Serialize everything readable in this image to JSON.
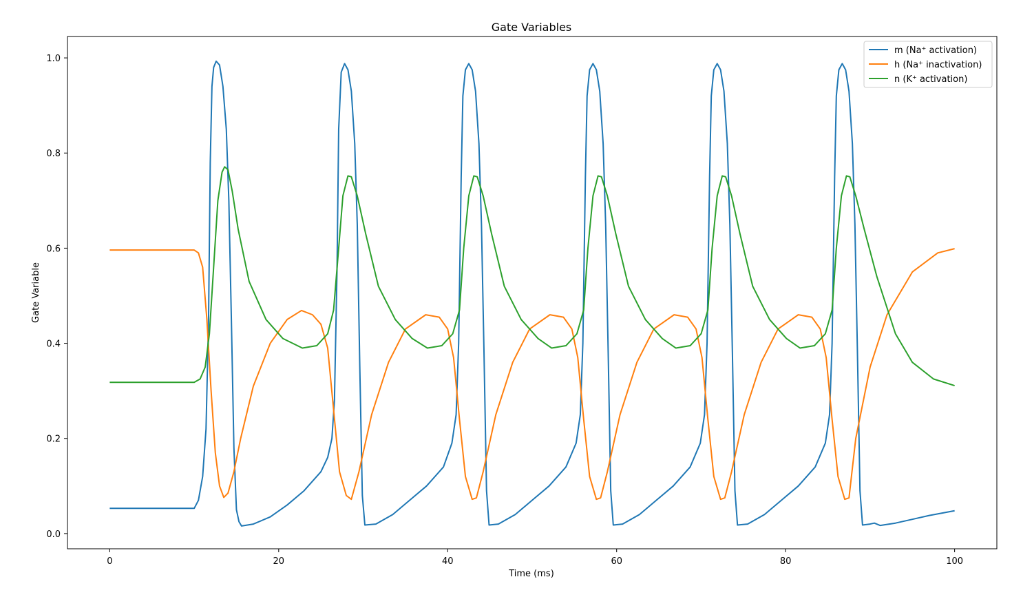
{
  "chart_data": {
    "type": "line",
    "title": "Gate Variables",
    "xlabel": "Time (ms)",
    "ylabel": "Gate Variable",
    "xlim": [
      -5,
      105
    ],
    "ylim": [
      -0.032,
      1.045
    ],
    "xticks": [
      0,
      20,
      40,
      60,
      80,
      100
    ],
    "xtick_labels": [
      "0",
      "20",
      "40",
      "60",
      "80",
      "100"
    ],
    "yticks": [
      0.0,
      0.2,
      0.4,
      0.6,
      0.8,
      1.0
    ],
    "ytick_labels": [
      "0.0",
      "0.2",
      "0.4",
      "0.6",
      "0.8",
      "1.0"
    ],
    "grid": false,
    "legend_position": "top-right",
    "series": [
      {
        "name": "m (Na⁺ activation)",
        "color": "#1f77b4",
        "x": [
          0,
          10,
          10.5,
          11,
          11.4,
          11.7,
          11.9,
          12.1,
          12.3,
          12.6,
          13,
          13.4,
          13.8,
          14.1,
          14.4,
          14.7,
          15,
          15.3,
          15.6,
          17,
          19,
          21,
          23,
          25,
          25.8,
          26.3,
          26.6,
          26.9,
          27.1,
          27.4,
          27.8,
          28.2,
          28.6,
          29,
          29.3,
          29.6,
          29.9,
          30.2,
          31.5,
          33.5,
          35.5,
          37.5,
          39.5,
          40.5,
          41,
          41.3,
          41.6,
          41.8,
          42.1,
          42.5,
          42.9,
          43.3,
          43.7,
          44,
          44.3,
          44.6,
          44.9,
          46,
          48,
          50,
          52,
          54,
          55.2,
          55.7,
          56,
          56.3,
          56.5,
          56.8,
          57.2,
          57.6,
          58,
          58.4,
          58.7,
          59,
          59.3,
          59.6,
          60.7,
          62.7,
          64.7,
          66.7,
          68.7,
          69.9,
          70.4,
          70.7,
          71,
          71.2,
          71.5,
          71.9,
          72.3,
          72.7,
          73.1,
          73.4,
          73.7,
          74,
          74.3,
          75.5,
          77.5,
          79.5,
          81.5,
          83.5,
          84.7,
          85.2,
          85.5,
          85.8,
          86,
          86.3,
          86.7,
          87.1,
          87.5,
          87.9,
          88.2,
          88.5,
          88.8,
          89.1,
          90,
          90.5,
          91.2,
          93,
          95,
          97,
          100
        ],
        "y": [
          0.053,
          0.053,
          0.07,
          0.12,
          0.22,
          0.45,
          0.78,
          0.94,
          0.98,
          0.993,
          0.985,
          0.94,
          0.85,
          0.7,
          0.45,
          0.18,
          0.05,
          0.025,
          0.016,
          0.02,
          0.035,
          0.06,
          0.09,
          0.13,
          0.16,
          0.2,
          0.28,
          0.55,
          0.85,
          0.97,
          0.988,
          0.975,
          0.93,
          0.82,
          0.65,
          0.35,
          0.08,
          0.018,
          0.02,
          0.04,
          0.07,
          0.1,
          0.14,
          0.19,
          0.25,
          0.4,
          0.75,
          0.92,
          0.975,
          0.988,
          0.975,
          0.93,
          0.82,
          0.65,
          0.38,
          0.09,
          0.018,
          0.02,
          0.04,
          0.07,
          0.1,
          0.14,
          0.19,
          0.25,
          0.4,
          0.75,
          0.92,
          0.975,
          0.988,
          0.975,
          0.93,
          0.82,
          0.65,
          0.38,
          0.09,
          0.018,
          0.02,
          0.04,
          0.07,
          0.1,
          0.14,
          0.19,
          0.25,
          0.4,
          0.75,
          0.92,
          0.975,
          0.988,
          0.975,
          0.93,
          0.82,
          0.65,
          0.38,
          0.09,
          0.018,
          0.02,
          0.04,
          0.07,
          0.1,
          0.14,
          0.19,
          0.25,
          0.4,
          0.75,
          0.92,
          0.975,
          0.988,
          0.975,
          0.93,
          0.82,
          0.65,
          0.38,
          0.09,
          0.018,
          0.02,
          0.022,
          0.017,
          0.022,
          0.03,
          0.038,
          0.048
        ]
      },
      {
        "name": "h (Na⁺ inactivation)",
        "color": "#ff7f0e",
        "x": [
          0,
          10,
          10.5,
          11,
          11.5,
          12,
          12.5,
          13,
          13.5,
          14,
          14.7,
          15.5,
          17,
          19,
          21,
          22.7,
          24,
          25,
          25.8,
          26.5,
          27.2,
          28,
          28.6,
          29.5,
          31,
          33,
          35,
          37.4,
          39,
          40,
          40.7,
          41.4,
          42.1,
          42.9,
          43.4,
          44.2,
          45.7,
          47.7,
          49.7,
          52.1,
          53.7,
          54.7,
          55.4,
          56.1,
          56.8,
          57.6,
          58.1,
          58.9,
          60.4,
          62.4,
          64.4,
          66.8,
          68.4,
          69.4,
          70.1,
          70.8,
          71.5,
          72.3,
          72.8,
          73.6,
          75.1,
          77.1,
          79.1,
          81.5,
          83.1,
          84.1,
          84.8,
          85.5,
          86.2,
          87,
          87.5,
          88.3,
          90,
          92,
          95,
          98,
          100
        ],
        "y": [
          0.596,
          0.596,
          0.59,
          0.56,
          0.45,
          0.3,
          0.17,
          0.1,
          0.076,
          0.085,
          0.13,
          0.2,
          0.31,
          0.4,
          0.45,
          0.469,
          0.46,
          0.44,
          0.39,
          0.26,
          0.13,
          0.08,
          0.072,
          0.13,
          0.25,
          0.36,
          0.43,
          0.46,
          0.455,
          0.43,
          0.37,
          0.24,
          0.12,
          0.072,
          0.075,
          0.13,
          0.25,
          0.36,
          0.43,
          0.46,
          0.455,
          0.43,
          0.37,
          0.24,
          0.12,
          0.072,
          0.075,
          0.13,
          0.25,
          0.36,
          0.43,
          0.46,
          0.455,
          0.43,
          0.37,
          0.24,
          0.12,
          0.072,
          0.075,
          0.13,
          0.25,
          0.36,
          0.43,
          0.46,
          0.455,
          0.43,
          0.37,
          0.24,
          0.12,
          0.072,
          0.075,
          0.2,
          0.35,
          0.46,
          0.55,
          0.59,
          0.599
        ]
      },
      {
        "name": "n (K⁺ activation)",
        "color": "#2ca02c",
        "x": [
          0,
          10,
          10.7,
          11.3,
          11.8,
          12.3,
          12.8,
          13.3,
          13.6,
          14,
          14.5,
          15.2,
          16.5,
          18.5,
          20.5,
          22.8,
          24.5,
          25.8,
          26.5,
          27.1,
          27.6,
          28.2,
          28.6,
          29.3,
          30.3,
          31.8,
          33.8,
          35.8,
          37.6,
          39.3,
          40.6,
          41.4,
          41.9,
          42.5,
          43.1,
          43.5,
          44.2,
          45.2,
          46.7,
          48.7,
          50.7,
          52.3,
          54,
          55.3,
          56.1,
          56.6,
          57.2,
          57.8,
          58.2,
          58.9,
          59.9,
          61.4,
          63.4,
          65.4,
          67,
          68.7,
          70,
          70.8,
          71.3,
          71.9,
          72.5,
          72.9,
          73.6,
          74.6,
          76.1,
          78.1,
          80.1,
          81.7,
          83.4,
          84.7,
          85.5,
          86,
          86.6,
          87.2,
          87.6,
          88.3,
          89.3,
          90.8,
          93,
          95,
          97.5,
          100
        ],
        "y": [
          0.318,
          0.318,
          0.325,
          0.35,
          0.42,
          0.56,
          0.7,
          0.76,
          0.771,
          0.765,
          0.72,
          0.64,
          0.53,
          0.45,
          0.41,
          0.39,
          0.395,
          0.42,
          0.47,
          0.6,
          0.71,
          0.752,
          0.75,
          0.71,
          0.63,
          0.52,
          0.45,
          0.41,
          0.39,
          0.395,
          0.42,
          0.47,
          0.6,
          0.71,
          0.752,
          0.75,
          0.71,
          0.63,
          0.52,
          0.45,
          0.41,
          0.39,
          0.395,
          0.42,
          0.47,
          0.6,
          0.71,
          0.752,
          0.75,
          0.71,
          0.63,
          0.52,
          0.45,
          0.41,
          0.39,
          0.395,
          0.42,
          0.47,
          0.6,
          0.71,
          0.752,
          0.75,
          0.71,
          0.63,
          0.52,
          0.45,
          0.41,
          0.39,
          0.395,
          0.42,
          0.47,
          0.6,
          0.71,
          0.752,
          0.75,
          0.71,
          0.64,
          0.54,
          0.42,
          0.36,
          0.325,
          0.311
        ]
      }
    ]
  }
}
